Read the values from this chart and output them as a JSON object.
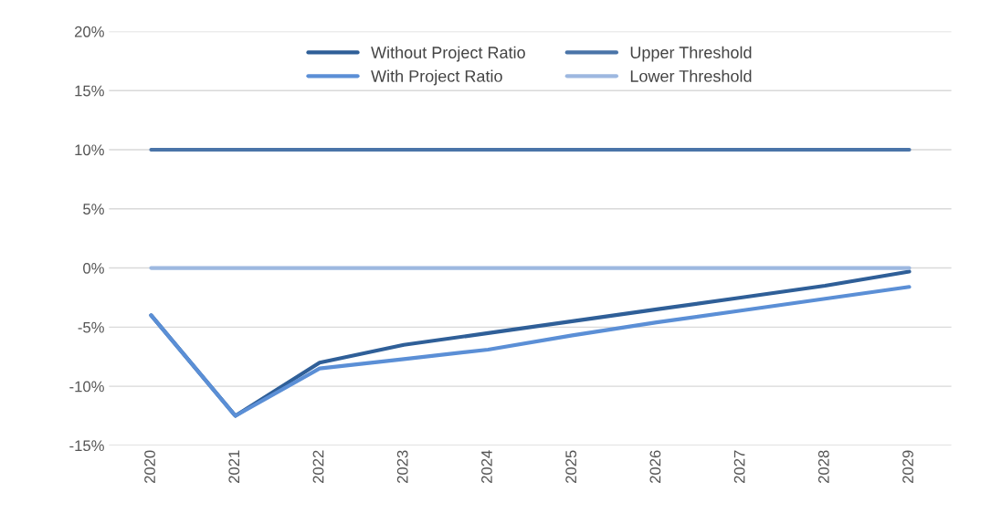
{
  "chart_data": {
    "type": "line",
    "categories": [
      "2020",
      "2021",
      "2022",
      "2023",
      "2024",
      "2025",
      "2026",
      "2027",
      "2028",
      "2029"
    ],
    "series": [
      {
        "name": "Without Project Ratio",
        "color": "#2f5f98",
        "values": [
          -4,
          -12.5,
          -8,
          -6.5,
          -5.5,
          -4.5,
          -3.5,
          -2.5,
          -1.5,
          -0.3
        ]
      },
      {
        "name": "With Project Ratio",
        "color": "#5b8fd6",
        "values": [
          -4,
          -12.5,
          -8.5,
          -7.7,
          -6.9,
          -5.7,
          -4.6,
          -3.6,
          -2.6,
          -1.6
        ]
      },
      {
        "name": "Upper Threshold",
        "color": "#4a74a8",
        "values": [
          10,
          10,
          10,
          10,
          10,
          10,
          10,
          10,
          10,
          10
        ]
      },
      {
        "name": "Lower Threshold",
        "color": "#9db8e0",
        "values": [
          0,
          0,
          0,
          0,
          0,
          0,
          0,
          0,
          0,
          0
        ]
      }
    ],
    "ylim": [
      -15,
      20
    ],
    "yticks": [
      {
        "value": -15,
        "label": "-15%"
      },
      {
        "value": -10,
        "label": "-10%"
      },
      {
        "value": -5,
        "label": "-5%"
      },
      {
        "value": 0,
        "label": "0%"
      },
      {
        "value": 5,
        "label": "5%"
      },
      {
        "value": 10,
        "label": "10%"
      },
      {
        "value": 15,
        "label": "15%"
      },
      {
        "value": 20,
        "label": "20%"
      }
    ],
    "grid": "y",
    "legend": "top",
    "marker": "none",
    "line_style": "solid"
  }
}
